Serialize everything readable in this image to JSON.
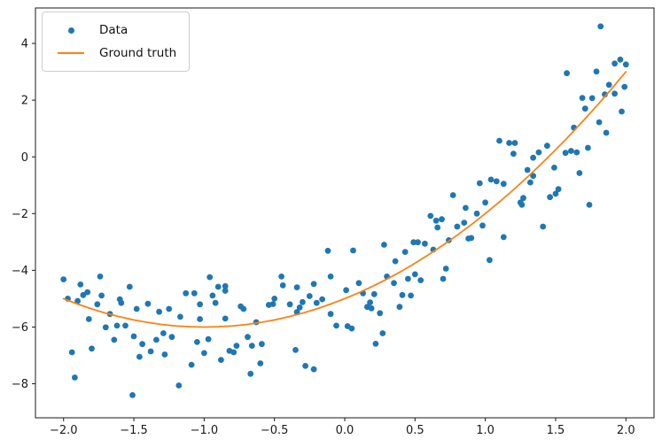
{
  "chart_data": {
    "type": "scatter",
    "title": "",
    "xlabel": "",
    "ylabel": "",
    "grid": false,
    "xlim": [
      -2.2,
      2.2
    ],
    "ylim": [
      -9.2,
      5.25
    ],
    "x_ticks": {
      "values": [
        -2.0,
        -1.5,
        -1.0,
        -0.5,
        0.0,
        0.5,
        1.0,
        1.5,
        2.0
      ],
      "labels": [
        "−2.0",
        "−1.5",
        "−1.0",
        "−0.5",
        "0.0",
        "0.5",
        "1.0",
        "1.5",
        "2.0"
      ]
    },
    "y_ticks": {
      "values": [
        -8,
        -6,
        -4,
        -2,
        0,
        2,
        4
      ],
      "labels": [
        "−8",
        "−6",
        "−4",
        "−2",
        "0",
        "2",
        "4"
      ]
    },
    "legend": {
      "position": "upper left",
      "entries": [
        {
          "label": "Data",
          "marker": "dot",
          "color": "#1f77b4"
        },
        {
          "label": "Ground truth",
          "marker": "line",
          "color": "#ff7f0e"
        }
      ]
    },
    "series": [
      {
        "name": "Data",
        "type": "scatter",
        "color": "#1f77b4",
        "marker_size": 3.4,
        "points": [
          [
            -2.0,
            -4.32
          ],
          [
            -1.97,
            -5.0
          ],
          [
            -1.94,
            -6.89
          ],
          [
            -1.92,
            -7.78
          ],
          [
            -1.9,
            -5.08
          ],
          [
            -1.88,
            -4.5
          ],
          [
            -1.86,
            -4.87
          ],
          [
            -1.83,
            -4.77
          ],
          [
            -1.82,
            -5.72
          ],
          [
            -1.8,
            -6.76
          ],
          [
            -1.76,
            -5.2
          ],
          [
            -1.74,
            -4.22
          ],
          [
            -1.73,
            -4.89
          ],
          [
            -1.7,
            -6.01
          ],
          [
            -1.67,
            -5.54
          ],
          [
            -1.64,
            -6.45
          ],
          [
            -1.62,
            -5.95
          ],
          [
            -1.6,
            -5.02
          ],
          [
            -1.59,
            -5.15
          ],
          [
            -1.56,
            -5.95
          ],
          [
            -1.53,
            -4.58
          ],
          [
            -1.51,
            -8.4
          ],
          [
            -1.5,
            -6.33
          ],
          [
            -1.48,
            -5.36
          ],
          [
            -1.46,
            -7.05
          ],
          [
            -1.44,
            -6.6
          ],
          [
            -1.4,
            -5.18
          ],
          [
            -1.38,
            -6.86
          ],
          [
            -1.34,
            -6.45
          ],
          [
            -1.32,
            -5.46
          ],
          [
            -1.29,
            -6.22
          ],
          [
            -1.28,
            -6.97
          ],
          [
            -1.25,
            -5.36
          ],
          [
            -1.23,
            -6.35
          ],
          [
            -1.18,
            -8.06
          ],
          [
            -1.17,
            -5.64
          ],
          [
            -1.13,
            -4.81
          ],
          [
            -1.09,
            -7.33
          ],
          [
            -1.07,
            -4.81
          ],
          [
            -1.05,
            -6.53
          ],
          [
            -1.03,
            -5.2
          ],
          [
            -1.03,
            -5.72
          ],
          [
            -1.0,
            -6.92
          ],
          [
            -0.97,
            -6.43
          ],
          [
            -0.96,
            -4.24
          ],
          [
            -0.94,
            -4.89
          ],
          [
            -0.92,
            -5.15
          ],
          [
            -0.9,
            -4.58
          ],
          [
            -0.88,
            -7.16
          ],
          [
            -0.85,
            -4.56
          ],
          [
            -0.85,
            -4.72
          ],
          [
            -0.85,
            -5.7
          ],
          [
            -0.82,
            -6.84
          ],
          [
            -0.79,
            -6.89
          ],
          [
            -0.77,
            -6.66
          ],
          [
            -0.74,
            -5.27
          ],
          [
            -0.72,
            -5.36
          ],
          [
            -0.69,
            -6.35
          ],
          [
            -0.67,
            -7.65
          ],
          [
            -0.66,
            -6.66
          ],
          [
            -0.63,
            -5.83
          ],
          [
            -0.6,
            -7.28
          ],
          [
            -0.59,
            -6.6
          ],
          [
            -0.54,
            -5.22
          ],
          [
            -0.51,
            -5.19
          ],
          [
            -0.5,
            -5.0
          ],
          [
            -0.45,
            -4.22
          ],
          [
            -0.44,
            -4.53
          ],
          [
            -0.39,
            -5.2
          ],
          [
            -0.35,
            -6.81
          ],
          [
            -0.34,
            -4.6
          ],
          [
            -0.34,
            -5.47
          ],
          [
            -0.32,
            -5.31
          ],
          [
            -0.3,
            -5.12
          ],
          [
            -0.28,
            -7.37
          ],
          [
            -0.25,
            -4.91
          ],
          [
            -0.22,
            -4.48
          ],
          [
            -0.22,
            -7.49
          ],
          [
            -0.2,
            -5.15
          ],
          [
            -0.16,
            -5.02
          ],
          [
            -0.12,
            -3.31
          ],
          [
            -0.1,
            -4.22
          ],
          [
            -0.1,
            -5.54
          ],
          [
            -0.06,
            -5.95
          ],
          [
            0.01,
            -4.7
          ],
          [
            0.02,
            -5.97
          ],
          [
            0.05,
            -6.05
          ],
          [
            0.06,
            -3.3
          ],
          [
            0.1,
            -4.45
          ],
          [
            0.13,
            -4.81
          ],
          [
            0.16,
            -5.29
          ],
          [
            0.18,
            -5.13
          ],
          [
            0.19,
            -5.34
          ],
          [
            0.21,
            -4.84
          ],
          [
            0.22,
            -6.59
          ],
          [
            0.25,
            -5.51
          ],
          [
            0.27,
            -6.22
          ],
          [
            0.28,
            -3.1
          ],
          [
            0.3,
            -4.22
          ],
          [
            0.35,
            -4.45
          ],
          [
            0.36,
            -3.68
          ],
          [
            0.39,
            -5.29
          ],
          [
            0.41,
            -4.87
          ],
          [
            0.43,
            -3.35
          ],
          [
            0.45,
            -4.3
          ],
          [
            0.47,
            -4.89
          ],
          [
            0.49,
            -3.01
          ],
          [
            0.5,
            -4.14
          ],
          [
            0.52,
            -3.01
          ],
          [
            0.54,
            -4.35
          ],
          [
            0.57,
            -3.06
          ],
          [
            0.61,
            -2.08
          ],
          [
            0.63,
            -3.27
          ],
          [
            0.65,
            -2.25
          ],
          [
            0.66,
            -2.49
          ],
          [
            0.69,
            -2.2
          ],
          [
            0.7,
            -4.3
          ],
          [
            0.72,
            -3.94
          ],
          [
            0.74,
            -2.94
          ],
          [
            0.77,
            -1.35
          ],
          [
            0.8,
            -2.46
          ],
          [
            0.85,
            -2.32
          ],
          [
            0.86,
            -1.8
          ],
          [
            0.88,
            -2.88
          ],
          [
            0.9,
            -2.86
          ],
          [
            0.94,
            -2.0
          ],
          [
            0.96,
            -0.93
          ],
          [
            0.98,
            -2.42
          ],
          [
            1.0,
            -1.61
          ],
          [
            1.03,
            -3.64
          ],
          [
            1.04,
            -0.8
          ],
          [
            1.08,
            -0.86
          ],
          [
            1.1,
            0.57
          ],
          [
            1.13,
            -0.95
          ],
          [
            1.13,
            -2.83
          ],
          [
            1.17,
            0.49
          ],
          [
            1.2,
            0.11
          ],
          [
            1.21,
            0.49
          ],
          [
            1.25,
            -1.61
          ],
          [
            1.26,
            -1.69
          ],
          [
            1.27,
            -1.45
          ],
          [
            1.3,
            -0.46
          ],
          [
            1.32,
            -0.9
          ],
          [
            1.34,
            -0.03
          ],
          [
            1.34,
            -0.67
          ],
          [
            1.38,
            0.16
          ],
          [
            1.41,
            -2.46
          ],
          [
            1.44,
            0.39
          ],
          [
            1.46,
            -1.42
          ],
          [
            1.49,
            -0.38
          ],
          [
            1.5,
            -1.3
          ],
          [
            1.52,
            -1.14
          ],
          [
            1.57,
            0.14
          ],
          [
            1.58,
            2.95
          ],
          [
            1.61,
            0.21
          ],
          [
            1.63,
            1.03
          ],
          [
            1.65,
            0.16
          ],
          [
            1.67,
            -0.57
          ],
          [
            1.69,
            2.08
          ],
          [
            1.71,
            1.7
          ],
          [
            1.73,
            0.32
          ],
          [
            1.74,
            -1.69
          ],
          [
            1.76,
            2.07
          ],
          [
            1.79,
            3.01
          ],
          [
            1.81,
            1.22
          ],
          [
            1.82,
            4.6
          ],
          [
            1.85,
            2.2
          ],
          [
            1.86,
            0.85
          ],
          [
            1.88,
            2.54
          ],
          [
            1.92,
            2.23
          ],
          [
            1.92,
            3.29
          ],
          [
            1.96,
            3.43
          ],
          [
            1.97,
            1.6
          ],
          [
            1.99,
            2.47
          ],
          [
            2.0,
            3.26
          ]
        ]
      },
      {
        "name": "Ground truth",
        "type": "line",
        "color": "#ff7f0e",
        "line_width": 1.75,
        "expression": "y = (x+1)^2 - 6",
        "x": [
          -2.0,
          -1.9,
          -1.8,
          -1.7,
          -1.6,
          -1.5,
          -1.4,
          -1.3,
          -1.2,
          -1.1,
          -1.0,
          -0.9,
          -0.8,
          -0.7,
          -0.6,
          -0.5,
          -0.4,
          -0.3,
          -0.2,
          -0.1,
          0.0,
          0.1,
          0.2,
          0.3,
          0.4,
          0.5,
          0.6,
          0.7,
          0.8,
          0.9,
          1.0,
          1.1,
          1.2,
          1.3,
          1.4,
          1.5,
          1.6,
          1.7,
          1.8,
          1.9,
          2.0
        ],
        "y": [
          -5.0,
          -5.19,
          -5.36,
          -5.51,
          -5.64,
          -5.75,
          -5.84,
          -5.91,
          -5.96,
          -5.99,
          -6.0,
          -5.99,
          -5.96,
          -5.91,
          -5.84,
          -5.75,
          -5.64,
          -5.51,
          -5.36,
          -5.19,
          -5.0,
          -4.79,
          -4.56,
          -4.31,
          -4.04,
          -3.75,
          -3.44,
          -3.11,
          -2.76,
          -2.39,
          -2.0,
          -1.59,
          -1.16,
          -0.71,
          -0.24,
          0.25,
          0.76,
          1.29,
          1.84,
          2.41,
          3.0
        ]
      }
    ]
  }
}
